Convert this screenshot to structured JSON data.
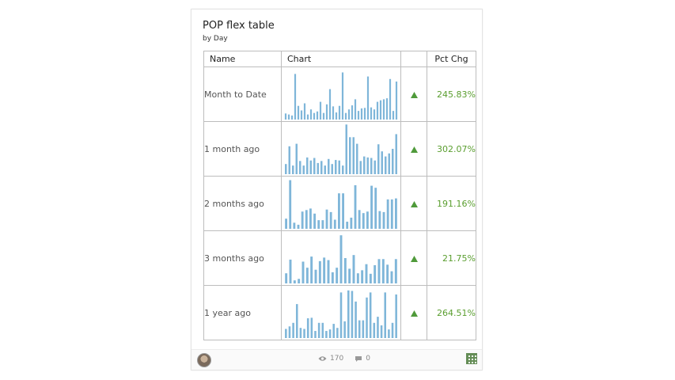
{
  "widget": {
    "title": "POP flex table",
    "subtitle": "by Day"
  },
  "table": {
    "columns": [
      "Name",
      "Chart",
      "",
      "Pct Chg"
    ],
    "rows": [
      {
        "name": "Month to Date",
        "trend": "up",
        "pct": "245.83%",
        "spark": [
          12,
          10,
          8,
          90,
          27,
          18,
          32,
          10,
          20,
          13,
          16,
          35,
          13,
          30,
          60,
          26,
          14,
          27,
          93,
          13,
          20,
          28,
          40,
          17,
          22,
          23,
          85,
          24,
          20,
          35,
          38,
          40,
          42,
          80,
          17,
          75
        ]
      },
      {
        "name": "1 month ago",
        "trend": "up",
        "pct": "302.07%",
        "spark": [
          20,
          55,
          17,
          60,
          26,
          17,
          33,
          27,
          32,
          22,
          26,
          17,
          30,
          20,
          28,
          27,
          17,
          98,
          73,
          73,
          60,
          26,
          35,
          33,
          32,
          27,
          59,
          45,
          35,
          41,
          50,
          79
        ]
      },
      {
        "name": "2 months ago",
        "trend": "up",
        "pct": "191.16%",
        "spark": [
          20,
          96,
          12,
          8,
          34,
          37,
          40,
          30,
          17,
          17,
          38,
          33,
          18,
          70,
          70,
          14,
          22,
          86,
          37,
          31,
          34,
          85,
          81,
          35,
          33,
          58,
          58,
          60
        ]
      },
      {
        "name": "3 months ago",
        "trend": "up",
        "pct": "21.75%",
        "spark": [
          20,
          47,
          6,
          9,
          43,
          31,
          53,
          27,
          44,
          51,
          46,
          22,
          31,
          95,
          50,
          29,
          56,
          20,
          26,
          38,
          19,
          36,
          48,
          48,
          37,
          24,
          48
        ]
      },
      {
        "name": "1 year ago",
        "trend": "up",
        "pct": "264.51%",
        "spark": [
          18,
          23,
          30,
          67,
          20,
          18,
          39,
          40,
          14,
          30,
          30,
          14,
          17,
          28,
          20,
          90,
          33,
          94,
          93,
          72,
          35,
          35,
          80,
          90,
          30,
          42,
          25,
          90,
          17,
          30,
          86
        ]
      }
    ]
  },
  "footer": {
    "views": "170",
    "comments": "0"
  },
  "colors": {
    "bar": "#7fb6d9",
    "trend_up": "#4f9a3a",
    "pct_text": "#5a9e2f"
  },
  "icons": {
    "views": "eye-icon",
    "comments": "comment-icon",
    "avatar": "user-avatar",
    "qr": "qr-code-icon"
  }
}
